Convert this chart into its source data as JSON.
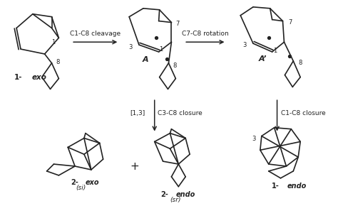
{
  "background": "#ffffff",
  "line_color": "#222222",
  "figsize": [
    4.74,
    3.14
  ],
  "dpi": 100,
  "arrow1_label": "C1-C8 cleavage",
  "arrow2_label": "C7-C8 rotation",
  "arrow3_label": "[1,3]",
  "arrow3b_label": "C3-C8 closure",
  "arrow4_label": "C1-C8 closure",
  "label_1exo": "1-",
  "label_exo_italic": "exo",
  "label_A": "A",
  "label_Aprime": "A’",
  "label_2exo": "2-",
  "label_exo2_italic": "exo",
  "label_si": "(si)",
  "label_plus": "+",
  "label_2endo": "2-",
  "label_endo_italic": "endo",
  "label_sr": "(sr)",
  "label_1endo": "1-",
  "label_endo2_italic": "endo"
}
